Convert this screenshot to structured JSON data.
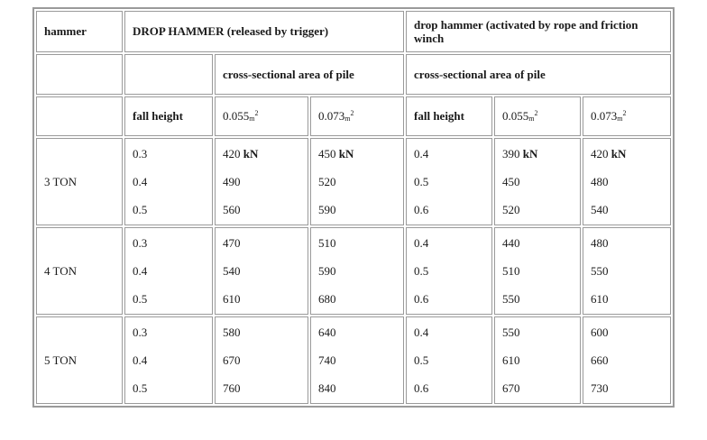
{
  "header": {
    "hammer": "hammer",
    "drop_hammer": "DROP HAMMER (released by trigger)",
    "drop_hammer_rope": "drop hammer (activated by rope and friction winch"
  },
  "subheader": {
    "area_left": "cross-sectional area of pile",
    "area_right": "cross-sectional area of pile"
  },
  "columns": {
    "fall_height_left": "fall height",
    "area1_left": "0.055",
    "area2_left": "0.073",
    "fall_height_right": "fall height",
    "area1_right": "0.055",
    "area2_right": "0.073",
    "unit_m": "m",
    "unit_sq": "2"
  },
  "kn": "kN",
  "rows": [
    {
      "ton": "3 TON",
      "fall_left": [
        "0.3",
        "0.4",
        "0.5"
      ],
      "a1_left": [
        "420",
        "490",
        "560"
      ],
      "a2_left": [
        "450",
        "520",
        "590"
      ],
      "fall_right": [
        "0.4",
        "0.5",
        "0.6"
      ],
      "a1_right": [
        "390",
        "450",
        "520"
      ],
      "a2_right": [
        "420",
        "480",
        "540"
      ]
    },
    {
      "ton": "4 TON",
      "fall_left": [
        "0.3",
        "0.4",
        "0.5"
      ],
      "a1_left": [
        "470",
        "540",
        "610"
      ],
      "a2_left": [
        "510",
        "590",
        "680"
      ],
      "fall_right": [
        "0.4",
        "0.5",
        "0.6"
      ],
      "a1_right": [
        "440",
        "510",
        "550"
      ],
      "a2_right": [
        "480",
        "550",
        "610"
      ]
    },
    {
      "ton": "5 TON",
      "fall_left": [
        "0.3",
        "0.4",
        "0.5"
      ],
      "a1_left": [
        "580",
        "670",
        "760"
      ],
      "a2_left": [
        "640",
        "740",
        "840"
      ],
      "fall_right": [
        "0.4",
        "0.5",
        "0.6"
      ],
      "a1_right": [
        "550",
        "610",
        "670"
      ],
      "a2_right": [
        "600",
        "660",
        "730"
      ]
    }
  ]
}
